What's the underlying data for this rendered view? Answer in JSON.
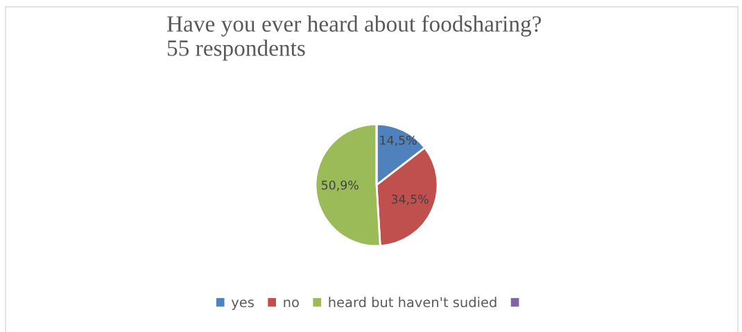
{
  "chart_data": {
    "type": "pie",
    "title": "Have you ever heard about foodsharing?\n55 respondents",
    "categories": [
      "yes",
      "no",
      "heard but haven't sudied",
      null
    ],
    "values": [
      14.5,
      34.5,
      50.9,
      0
    ],
    "colors": [
      "#4f81bd",
      "#c0504d",
      "#9bbb59",
      "#8064a2"
    ],
    "value_labels": [
      "14,5%",
      "34,5%",
      "50,9%",
      null
    ],
    "legend": "bottom"
  }
}
